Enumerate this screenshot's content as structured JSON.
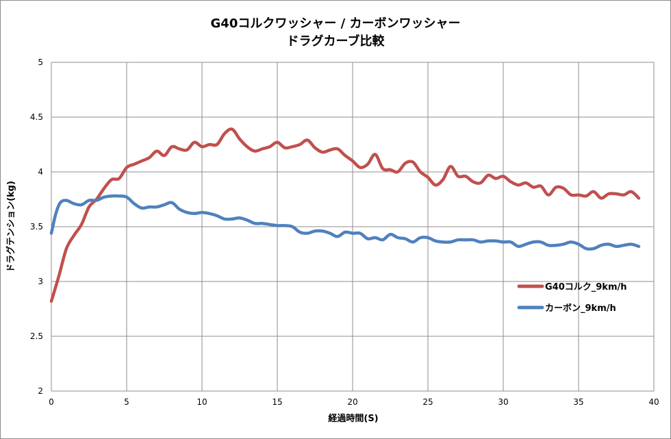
{
  "chart_data": {
    "type": "line",
    "title_line1": "G40コルクワッシャー / カーボンワッシャー",
    "title_line2": "ドラグカーブ比較",
    "xlabel": "経過時間(S)",
    "ylabel": "ドラグテンション(kg)",
    "xlim": [
      0,
      40
    ],
    "ylim": [
      2,
      5
    ],
    "xticks": [
      0,
      5,
      10,
      15,
      20,
      25,
      30,
      35,
      40
    ],
    "yticks": [
      2,
      2.5,
      3,
      3.5,
      4,
      4.5,
      5
    ],
    "grid": true,
    "legend_position": "right",
    "series": [
      {
        "name": "G40コルク_9km/h",
        "color": "#c0504d",
        "points": [
          [
            0,
            2.82
          ],
          [
            0.5,
            3.05
          ],
          [
            1,
            3.3
          ],
          [
            1.5,
            3.42
          ],
          [
            2,
            3.52
          ],
          [
            2.5,
            3.68
          ],
          [
            3,
            3.75
          ],
          [
            3.5,
            3.85
          ],
          [
            4,
            3.93
          ],
          [
            4.5,
            3.94
          ],
          [
            5,
            4.04
          ],
          [
            5.5,
            4.07
          ],
          [
            6,
            4.1
          ],
          [
            6.5,
            4.13
          ],
          [
            7,
            4.19
          ],
          [
            7.5,
            4.15
          ],
          [
            8,
            4.23
          ],
          [
            8.5,
            4.21
          ],
          [
            9,
            4.2
          ],
          [
            9.5,
            4.27
          ],
          [
            10,
            4.23
          ],
          [
            10.5,
            4.25
          ],
          [
            11,
            4.25
          ],
          [
            11.5,
            4.35
          ],
          [
            12,
            4.39
          ],
          [
            12.5,
            4.3
          ],
          [
            13,
            4.23
          ],
          [
            13.5,
            4.19
          ],
          [
            14,
            4.21
          ],
          [
            14.5,
            4.23
          ],
          [
            15,
            4.27
          ],
          [
            15.5,
            4.22
          ],
          [
            16,
            4.23
          ],
          [
            16.5,
            4.25
          ],
          [
            17,
            4.29
          ],
          [
            17.5,
            4.22
          ],
          [
            18,
            4.18
          ],
          [
            18.5,
            4.2
          ],
          [
            19,
            4.21
          ],
          [
            19.5,
            4.15
          ],
          [
            20,
            4.1
          ],
          [
            20.5,
            4.04
          ],
          [
            21,
            4.07
          ],
          [
            21.5,
            4.16
          ],
          [
            22,
            4.03
          ],
          [
            22.5,
            4.02
          ],
          [
            23,
            4.0
          ],
          [
            23.5,
            4.08
          ],
          [
            24,
            4.09
          ],
          [
            24.5,
            4.0
          ],
          [
            25,
            3.95
          ],
          [
            25.5,
            3.88
          ],
          [
            26,
            3.93
          ],
          [
            26.5,
            4.05
          ],
          [
            27,
            3.96
          ],
          [
            27.5,
            3.96
          ],
          [
            28,
            3.91
          ],
          [
            28.5,
            3.9
          ],
          [
            29,
            3.97
          ],
          [
            29.5,
            3.94
          ],
          [
            30,
            3.96
          ],
          [
            30.5,
            3.91
          ],
          [
            31,
            3.88
          ],
          [
            31.5,
            3.9
          ],
          [
            32,
            3.86
          ],
          [
            32.5,
            3.87
          ],
          [
            33,
            3.79
          ],
          [
            33.5,
            3.86
          ],
          [
            34,
            3.85
          ],
          [
            34.5,
            3.79
          ],
          [
            35,
            3.79
          ],
          [
            35.5,
            3.78
          ],
          [
            36,
            3.82
          ],
          [
            36.5,
            3.76
          ],
          [
            37,
            3.8
          ],
          [
            37.5,
            3.8
          ],
          [
            38,
            3.79
          ],
          [
            38.5,
            3.82
          ],
          [
            39,
            3.76
          ]
        ]
      },
      {
        "name": "カーボン_9km/h",
        "color": "#4f81bd",
        "points": [
          [
            0,
            3.44
          ],
          [
            0.3,
            3.62
          ],
          [
            0.6,
            3.72
          ],
          [
            1,
            3.74
          ],
          [
            1.5,
            3.71
          ],
          [
            2,
            3.7
          ],
          [
            2.5,
            3.74
          ],
          [
            3,
            3.74
          ],
          [
            3.5,
            3.77
          ],
          [
            4,
            3.78
          ],
          [
            4.5,
            3.78
          ],
          [
            5,
            3.77
          ],
          [
            5.5,
            3.71
          ],
          [
            6,
            3.67
          ],
          [
            6.5,
            3.68
          ],
          [
            7,
            3.68
          ],
          [
            7.5,
            3.7
          ],
          [
            8,
            3.72
          ],
          [
            8.5,
            3.66
          ],
          [
            9,
            3.63
          ],
          [
            9.5,
            3.62
          ],
          [
            10,
            3.63
          ],
          [
            10.5,
            3.62
          ],
          [
            11,
            3.6
          ],
          [
            11.5,
            3.57
          ],
          [
            12,
            3.57
          ],
          [
            12.5,
            3.58
          ],
          [
            13,
            3.56
          ],
          [
            13.5,
            3.53
          ],
          [
            14,
            3.53
          ],
          [
            14.5,
            3.52
          ],
          [
            15,
            3.51
          ],
          [
            15.5,
            3.51
          ],
          [
            16,
            3.5
          ],
          [
            16.5,
            3.45
          ],
          [
            17,
            3.44
          ],
          [
            17.5,
            3.46
          ],
          [
            18,
            3.46
          ],
          [
            18.5,
            3.44
          ],
          [
            19,
            3.41
          ],
          [
            19.5,
            3.45
          ],
          [
            20,
            3.44
          ],
          [
            20.5,
            3.44
          ],
          [
            21,
            3.39
          ],
          [
            21.5,
            3.4
          ],
          [
            22,
            3.38
          ],
          [
            22.5,
            3.43
          ],
          [
            23,
            3.4
          ],
          [
            23.5,
            3.39
          ],
          [
            24,
            3.36
          ],
          [
            24.5,
            3.4
          ],
          [
            25,
            3.4
          ],
          [
            25.5,
            3.37
          ],
          [
            26,
            3.36
          ],
          [
            26.5,
            3.36
          ],
          [
            27,
            3.38
          ],
          [
            27.5,
            3.38
          ],
          [
            28,
            3.38
          ],
          [
            28.5,
            3.36
          ],
          [
            29,
            3.37
          ],
          [
            29.5,
            3.37
          ],
          [
            30,
            3.36
          ],
          [
            30.5,
            3.36
          ],
          [
            31,
            3.32
          ],
          [
            31.5,
            3.34
          ],
          [
            32,
            3.36
          ],
          [
            32.5,
            3.36
          ],
          [
            33,
            3.33
          ],
          [
            33.5,
            3.33
          ],
          [
            34,
            3.34
          ],
          [
            34.5,
            3.36
          ],
          [
            35,
            3.34
          ],
          [
            35.5,
            3.3
          ],
          [
            36,
            3.3
          ],
          [
            36.5,
            3.33
          ],
          [
            37,
            3.34
          ],
          [
            37.5,
            3.32
          ],
          [
            38,
            3.33
          ],
          [
            38.5,
            3.34
          ],
          [
            39,
            3.32
          ]
        ]
      }
    ]
  }
}
